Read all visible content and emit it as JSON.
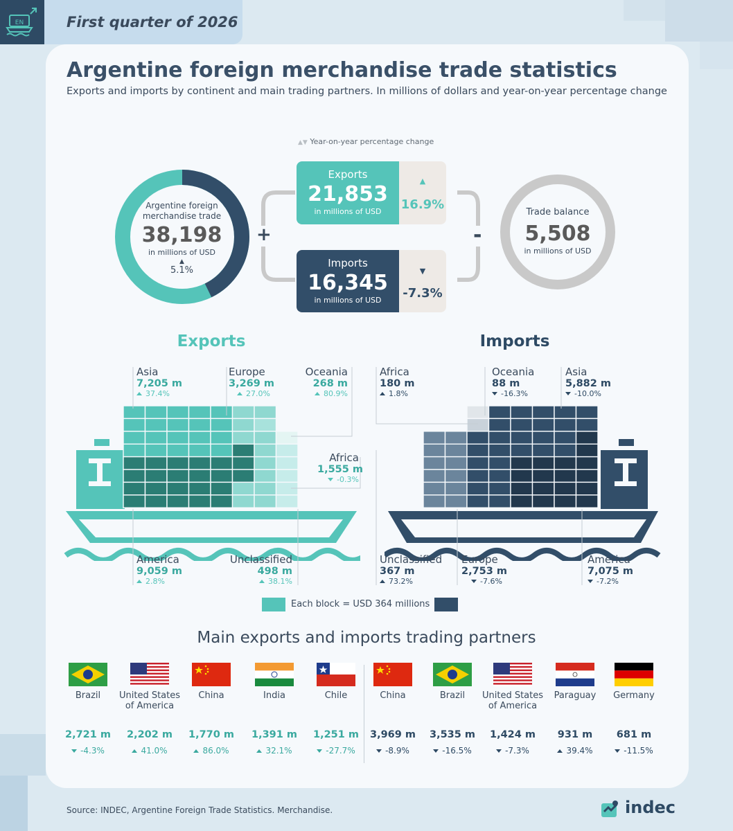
{
  "header": {
    "logo_text": "EN",
    "quarter": "First quarter of 2026"
  },
  "title": "Argentine foreign merchandise trade statistics",
  "subtitle": "Exports and imports by continent and main trading partners. In millions of dollars and year-on-year percentage change",
  "yoy_legend": "Year-on-year percentage change",
  "total": {
    "label_line1": "Argentine foreign",
    "label_line2": "merchandise trade",
    "value": "38,198",
    "unit": "in millions of USD",
    "change": "5.1%",
    "export_share": 0.572
  },
  "operators": {
    "plus": "+",
    "minus": "-"
  },
  "exports_summary": {
    "label": "Exports",
    "value": "21,853",
    "unit": "in millions of USD",
    "change": "16.9%"
  },
  "imports_summary": {
    "label": "Imports",
    "value": "16,345",
    "unit": "in millions of USD",
    "change": "-7.3%"
  },
  "balance": {
    "label": "Trade balance",
    "value": "5,508",
    "unit": "in millions of USD"
  },
  "exports_section": {
    "title": "Exports",
    "regions": [
      {
        "name": "Asia",
        "value": "7,205 m",
        "change": "37.4%",
        "dir": "up"
      },
      {
        "name": "Europe",
        "value": "3,269 m",
        "change": "27.0%",
        "dir": "up"
      },
      {
        "name": "Oceania",
        "value": "268 m",
        "change": "80.9%",
        "dir": "up"
      },
      {
        "name": "Africa",
        "value": "1,555 m",
        "change": "-0.3%",
        "dir": "down"
      },
      {
        "name": "America",
        "value": "9,059 m",
        "change": "2.8%",
        "dir": "up"
      },
      {
        "name": "Unclassified",
        "value": "498 m",
        "change": "38.1%",
        "dir": "up"
      }
    ]
  },
  "imports_section": {
    "title": "Imports",
    "regions": [
      {
        "name": "Africa",
        "value": "180 m",
        "change": "1.8%",
        "dir": "up"
      },
      {
        "name": "Oceania",
        "value": "88 m",
        "change": "-16.3%",
        "dir": "down"
      },
      {
        "name": "Asia",
        "value": "5,882 m",
        "change": "-10.0%",
        "dir": "down"
      },
      {
        "name": "Unclassified",
        "value": "367 m",
        "change": "73.2%",
        "dir": "up"
      },
      {
        "name": "Europe",
        "value": "2,753 m",
        "change": "-7.6%",
        "dir": "down"
      },
      {
        "name": "America",
        "value": "7,075 m",
        "change": "-7.2%",
        "dir": "down"
      }
    ]
  },
  "block_legend": "Each block = USD 364 millions",
  "partners_title": "Main exports and imports trading partners",
  "export_partners": [
    {
      "name": "Brazil",
      "value": "2,721 m",
      "change": "-4.3%",
      "dir": "down",
      "flag": "brazil-flag"
    },
    {
      "name": "United States of America",
      "value": "2,202 m",
      "change": "41.0%",
      "dir": "up",
      "flag": "usa-flag"
    },
    {
      "name": "China",
      "value": "1,770 m",
      "change": "86.0%",
      "dir": "up",
      "flag": "china-flag"
    },
    {
      "name": "India",
      "value": "1,391 m",
      "change": "32.1%",
      "dir": "up",
      "flag": "india-flag"
    },
    {
      "name": "Chile",
      "value": "1,251 m",
      "change": "-27.7%",
      "dir": "down",
      "flag": "chile-flag"
    }
  ],
  "import_partners": [
    {
      "name": "China",
      "value": "3,969 m",
      "change": "-8.9%",
      "dir": "down",
      "flag": "china-flag"
    },
    {
      "name": "Brazil",
      "value": "3,535 m",
      "change": "-16.5%",
      "dir": "down",
      "flag": "brazil-flag"
    },
    {
      "name": "United States of America",
      "value": "1,424 m",
      "change": "-7.3%",
      "dir": "down",
      "flag": "usa-flag"
    },
    {
      "name": "Paraguay",
      "value": "931 m",
      "change": "39.4%",
      "dir": "up",
      "flag": "paraguay-flag"
    },
    {
      "name": "Germany",
      "value": "681 m",
      "change": "-11.5%",
      "dir": "down",
      "flag": "germany-flag"
    }
  ],
  "footer": {
    "source": "Source: INDEC, Argentine Foreign Trade Statistics. Merchandise.",
    "brand": "indec"
  },
  "colors": {
    "teal": "#55c4b9",
    "navy": "#324e69",
    "grey": "#c9c9c9"
  }
}
